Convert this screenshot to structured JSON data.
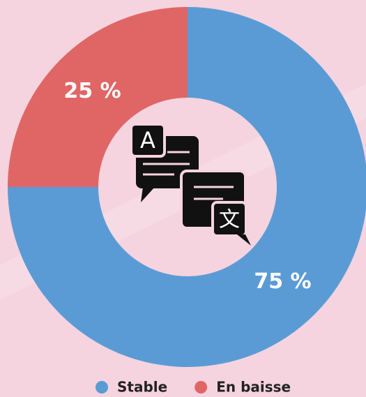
{
  "chart_data": {
    "type": "donut",
    "categories": [
      "Stable",
      "En baisse"
    ],
    "values": [
      75,
      25
    ],
    "value_labels": [
      "75 %",
      "25 %"
    ],
    "colors": [
      "#5b9bd5",
      "#e06666"
    ],
    "legend": "bottom"
  }
}
